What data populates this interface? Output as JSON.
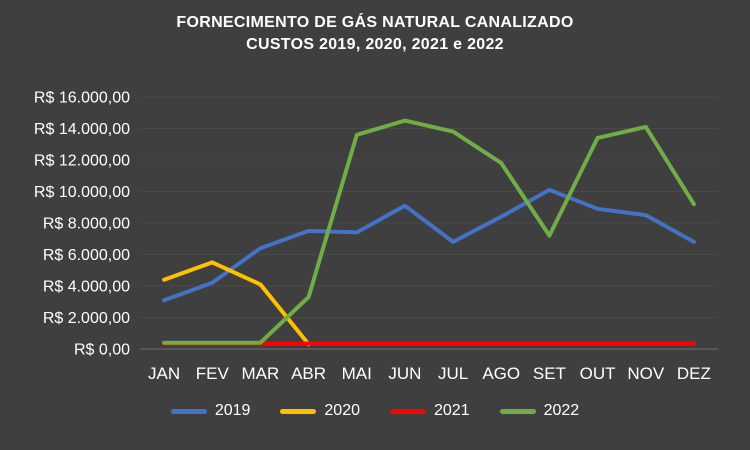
{
  "title": {
    "line1": "FORNECIMENTO DE GÁS NATURAL CANALIZADO",
    "line2": "CUSTOS 2019, 2020, 2021 e 2022"
  },
  "chart_data": {
    "type": "line",
    "categories": [
      "JAN",
      "FEV",
      "MAR",
      "ABR",
      "MAI",
      "JUN",
      "JUL",
      "AGO",
      "SET",
      "OUT",
      "NOV",
      "DEZ"
    ],
    "series": [
      {
        "name": "2019",
        "color": "#4472C4",
        "values": [
          3100,
          4200,
          6400,
          7500,
          7400,
          9100,
          6800,
          8400,
          10100,
          8900,
          8500,
          6800
        ]
      },
      {
        "name": "2020",
        "color": "#FFC000",
        "values": [
          4400,
          5500,
          4100,
          300,
          null,
          null,
          null,
          null,
          null,
          null,
          null,
          null
        ]
      },
      {
        "name": "2021",
        "color": "#FF0000",
        "values": [
          350,
          350,
          350,
          350,
          350,
          350,
          350,
          350,
          350,
          350,
          350,
          350
        ]
      },
      {
        "name": "2022",
        "color": "#70AD47",
        "values": [
          400,
          400,
          400,
          3300,
          13600,
          14500,
          13800,
          11800,
          7200,
          13400,
          14100,
          9200
        ]
      }
    ],
    "ylim": [
      0,
      16000
    ],
    "ytick_step": 2000,
    "ytick_labels": [
      "R$ 0,00",
      "R$ 2.000,00",
      "R$ 4.000,00",
      "R$ 6.000,00",
      "R$ 8.000,00",
      "R$ 10.000,00",
      "R$ 12.000,00",
      "R$ 14.000,00",
      "R$ 16.000,00"
    ],
    "grid": true,
    "legend_position": "bottom"
  },
  "colors": {
    "background": "#3F3F3F",
    "text": "#FFFFFF",
    "gridline": "#4A4A4A",
    "axis_line": "#6E6E6E"
  }
}
